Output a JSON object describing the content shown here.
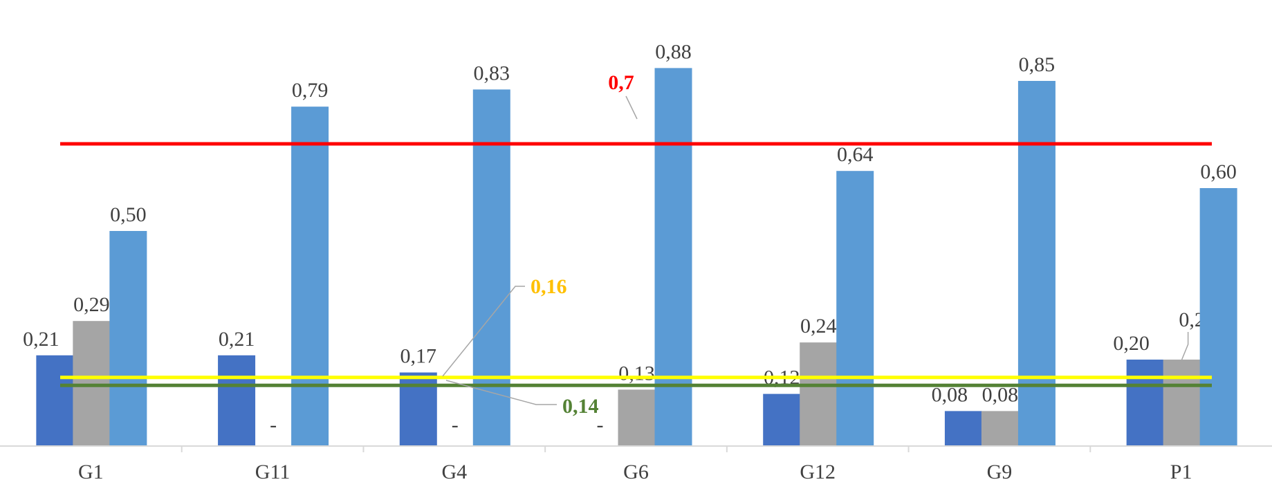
{
  "chart_data": {
    "type": "bar",
    "categories": [
      "G1",
      "G11",
      "G4",
      "G6",
      "G12",
      "G9",
      "P1"
    ],
    "series": [
      {
        "color": "#4472C4",
        "values": [
          0.21,
          0.21,
          0.17,
          null,
          0.12,
          0.08,
          0.2
        ],
        "labels": [
          "0,21",
          "0,21",
          "0,17",
          "-",
          "0,12",
          "0,08",
          "0,20"
        ]
      },
      {
        "color": "#A5A5A5",
        "values": [
          0.29,
          null,
          null,
          0.13,
          0.24,
          0.08,
          0.2
        ],
        "labels": [
          "0,29",
          "-",
          "-",
          "0,13",
          "0,24",
          "0,08",
          "0,20"
        ]
      },
      {
        "color": "#5B9BD5",
        "values": [
          0.5,
          0.79,
          0.83,
          0.88,
          0.64,
          0.85,
          0.6
        ],
        "labels": [
          "0,50",
          "0,79",
          "0,83",
          "0,88",
          "0,64",
          "0,85",
          "0,60"
        ]
      }
    ],
    "reference_lines": [
      {
        "value": 0.7,
        "label": "0,7",
        "color": "#FF0000"
      },
      {
        "value": 0.16,
        "label": "0,16",
        "color": "#FFFF00",
        "label_color": "#FFC000"
      },
      {
        "value": 0.14,
        "label": "0,14",
        "color": "#548235"
      }
    ],
    "ylim": [
      0,
      0.95
    ],
    "grid": false,
    "legend": "none"
  }
}
